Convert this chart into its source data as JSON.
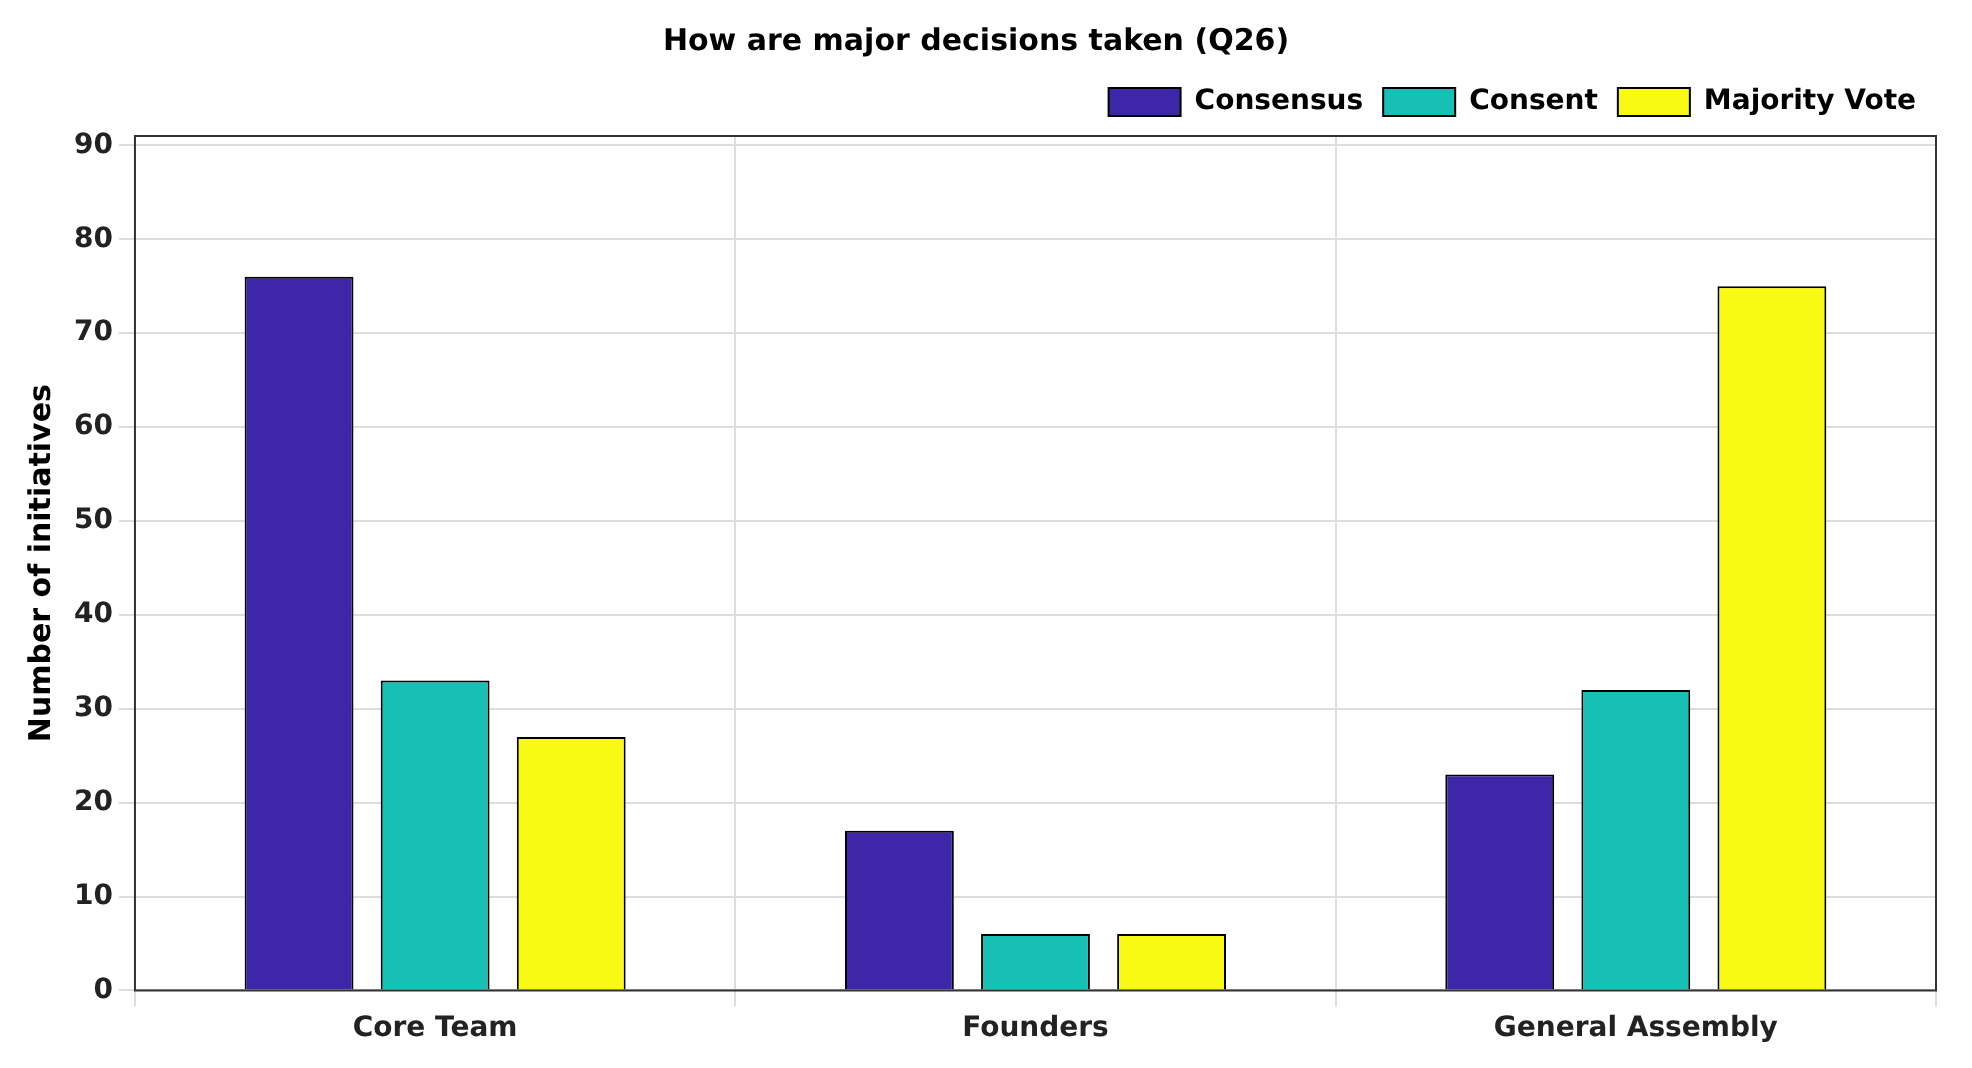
{
  "chart_data": {
    "type": "bar",
    "title": "How are major decisions taken (Q26)",
    "ylabel": "Number of initiatives",
    "categories": [
      "Core Team",
      "Founders",
      "General Assembly"
    ],
    "series": [
      {
        "name": "Consensus",
        "color": "#3e26a8",
        "values": [
          76,
          17,
          23
        ]
      },
      {
        "name": "Consent",
        "color": "#17bfb4",
        "values": [
          33,
          6,
          32
        ]
      },
      {
        "name": "Majority Vote",
        "color": "#f9fa14",
        "values": [
          27,
          6,
          75
        ]
      }
    ],
    "ylim": [
      0,
      91
    ],
    "yticks": [
      0,
      10,
      20,
      30,
      40,
      50,
      60,
      70,
      80,
      90
    ],
    "grid": true,
    "legend": "top right"
  }
}
